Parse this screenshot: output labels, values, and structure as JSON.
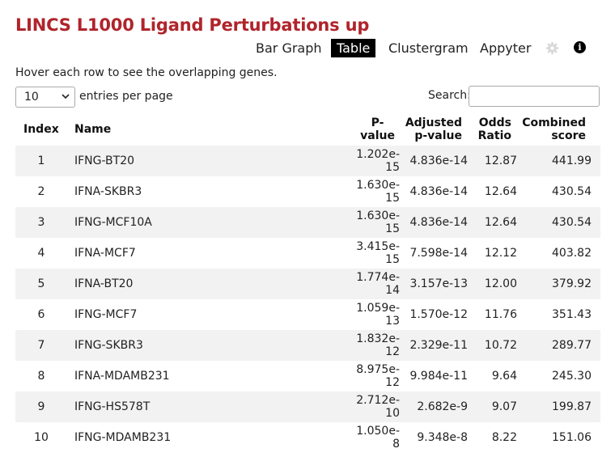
{
  "title": "LINCS L1000 Ligand Perturbations up",
  "tabs": [
    {
      "label": "Bar Graph",
      "active": false
    },
    {
      "label": "Table",
      "active": true
    },
    {
      "label": "Clustergram",
      "active": false
    },
    {
      "label": "Appyter",
      "active": false
    }
  ],
  "icons": {
    "settings": "gear-icon",
    "info": "info-icon"
  },
  "hint": "Hover each row to see the overlapping genes.",
  "length_menu": {
    "selected": "10",
    "label": "entries per page"
  },
  "search": {
    "label": "Search:",
    "value": "",
    "placeholder": ""
  },
  "table": {
    "headers": {
      "index": "Index",
      "name": "Name",
      "pvalue_1": "P-",
      "pvalue_2": "value",
      "adjusted_1": "Adjusted",
      "adjusted_2": "p-value",
      "odds_1": "Odds",
      "odds_2": "Ratio",
      "combined_1": "Combined",
      "combined_2": "score"
    },
    "rows": [
      {
        "index": "1",
        "name": "IFNG-BT20",
        "p_mant": "1.202e-",
        "p_exp": "15",
        "adjusted": "4.836e-14",
        "odds": "12.87",
        "combined": "441.99"
      },
      {
        "index": "2",
        "name": "IFNA-SKBR3",
        "p_mant": "1.630e-",
        "p_exp": "15",
        "adjusted": "4.836e-14",
        "odds": "12.64",
        "combined": "430.54"
      },
      {
        "index": "3",
        "name": "IFNG-MCF10A",
        "p_mant": "1.630e-",
        "p_exp": "15",
        "adjusted": "4.836e-14",
        "odds": "12.64",
        "combined": "430.54"
      },
      {
        "index": "4",
        "name": "IFNA-MCF7",
        "p_mant": "3.415e-",
        "p_exp": "15",
        "adjusted": "7.598e-14",
        "odds": "12.12",
        "combined": "403.82"
      },
      {
        "index": "5",
        "name": "IFNA-BT20",
        "p_mant": "1.774e-",
        "p_exp": "14",
        "adjusted": "3.157e-13",
        "odds": "12.00",
        "combined": "379.92"
      },
      {
        "index": "6",
        "name": "IFNG-MCF7",
        "p_mant": "1.059e-",
        "p_exp": "13",
        "adjusted": "1.570e-12",
        "odds": "11.76",
        "combined": "351.43"
      },
      {
        "index": "7",
        "name": "IFNG-SKBR3",
        "p_mant": "1.832e-",
        "p_exp": "12",
        "adjusted": "2.329e-11",
        "odds": "10.72",
        "combined": "289.77"
      },
      {
        "index": "8",
        "name": "IFNA-MDAMB231",
        "p_mant": "8.975e-",
        "p_exp": "12",
        "adjusted": "9.984e-11",
        "odds": "9.64",
        "combined": "245.30"
      },
      {
        "index": "9",
        "name": "IFNG-HS578T",
        "p_mant": "2.712e-",
        "p_exp": "10",
        "adjusted": "2.682e-9",
        "odds": "9.07",
        "combined": "199.87"
      },
      {
        "index": "10",
        "name": "IFNG-MDAMB231",
        "p_mant": "1.050e-",
        "p_exp": "8",
        "adjusted": "9.348e-8",
        "odds": "8.22",
        "combined": "151.06"
      }
    ]
  }
}
